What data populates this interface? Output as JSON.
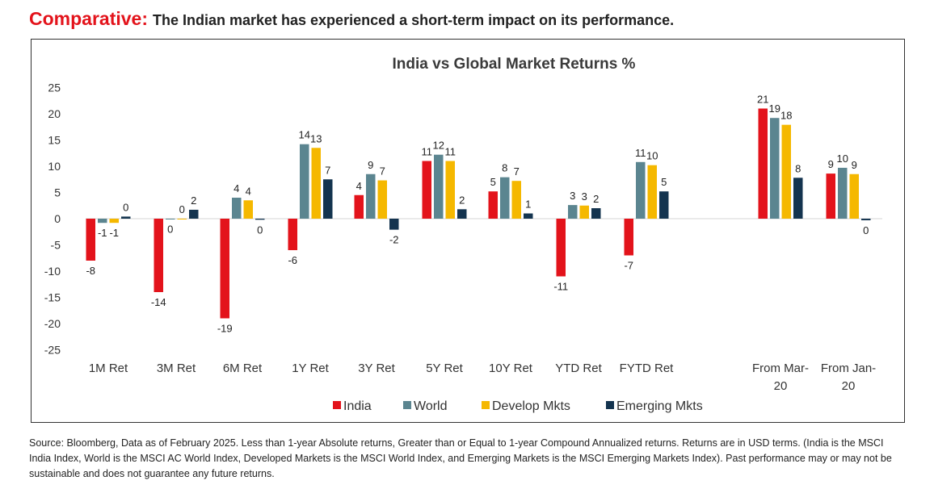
{
  "heading": {
    "lead": "Comparative:",
    "rest": "The Indian market has experienced a short-term impact on its performance."
  },
  "chart_data": {
    "type": "bar",
    "title": "India vs Global Market Returns %",
    "xlabel": "",
    "ylabel": "",
    "ylim": [
      -25,
      25
    ],
    "yticks": [
      25,
      20,
      15,
      10,
      5,
      0,
      -5,
      -10,
      -15,
      -20,
      -25
    ],
    "grid": false,
    "legend_position": "bottom",
    "categories": [
      "1M Ret",
      "3M Ret",
      "6M Ret",
      "1Y Ret",
      "3Y Ret",
      "5Y Ret",
      "10Y Ret",
      "YTD Ret",
      "FYTD Ret",
      "From Mar-20",
      "From Jan-20"
    ],
    "category_lines": [
      [
        "1M Ret"
      ],
      [
        "3M Ret"
      ],
      [
        "6M Ret"
      ],
      [
        "1Y Ret"
      ],
      [
        "3Y Ret"
      ],
      [
        "5Y Ret"
      ],
      [
        "10Y Ret"
      ],
      [
        "YTD Ret"
      ],
      [
        "FYTD Ret"
      ],
      [
        "From Mar-",
        "20"
      ],
      [
        "From Jan-",
        "20"
      ]
    ],
    "series": [
      {
        "name": "India",
        "color": "#e3131b",
        "values": [
          -8,
          -14,
          -19,
          -6,
          4.5,
          11,
          5.2,
          -11,
          -7,
          21,
          8.6
        ],
        "labels": [
          "-8",
          "-14",
          "-19",
          "-6",
          "4",
          "11",
          "5",
          "-11",
          "-7",
          "21",
          "9"
        ]
      },
      {
        "name": "World",
        "color": "#5b8590",
        "values": [
          -0.8,
          -0.1,
          4.0,
          14.2,
          8.5,
          12.2,
          7.9,
          2.6,
          10.8,
          19.2,
          9.7
        ],
        "labels": [
          "-1",
          "0",
          "4",
          "14",
          "9",
          "12",
          "8",
          "3",
          "11",
          "19",
          "10"
        ]
      },
      {
        "name": "Develop Mkts",
        "color": "#f5b800",
        "values": [
          -0.8,
          0,
          3.5,
          13.5,
          7.3,
          11.0,
          7.2,
          2.5,
          10.2,
          17.9,
          8.5
        ],
        "labels": [
          "-1",
          "0",
          "4",
          "13",
          "7",
          "11",
          "7",
          "3",
          "10",
          "18",
          "9"
        ]
      },
      {
        "name": "Emerging Mkts",
        "color": "#14344f",
        "values": [
          0.4,
          1.7,
          -0.2,
          7.5,
          -2.1,
          1.8,
          1.0,
          2.0,
          5.2,
          7.8,
          -0.3
        ],
        "labels": [
          "0",
          "2",
          "0",
          "7",
          "-2",
          "2",
          "1",
          "2",
          "5",
          "8",
          "0"
        ]
      }
    ]
  },
  "footnote": "Source: Bloomberg, Data as of February 2025. Less than 1-year Absolute returns, Greater than or Equal to 1-year Compound Annualized returns. Returns are in USD terms. (India is the MSCI India Index, World is the MSCI AC World Index, Developed Markets is the MSCI World Index, and Emerging Markets is the MSCI Emerging Markets Index). Past performance may or may not be sustainable and does not guarantee any future returns."
}
